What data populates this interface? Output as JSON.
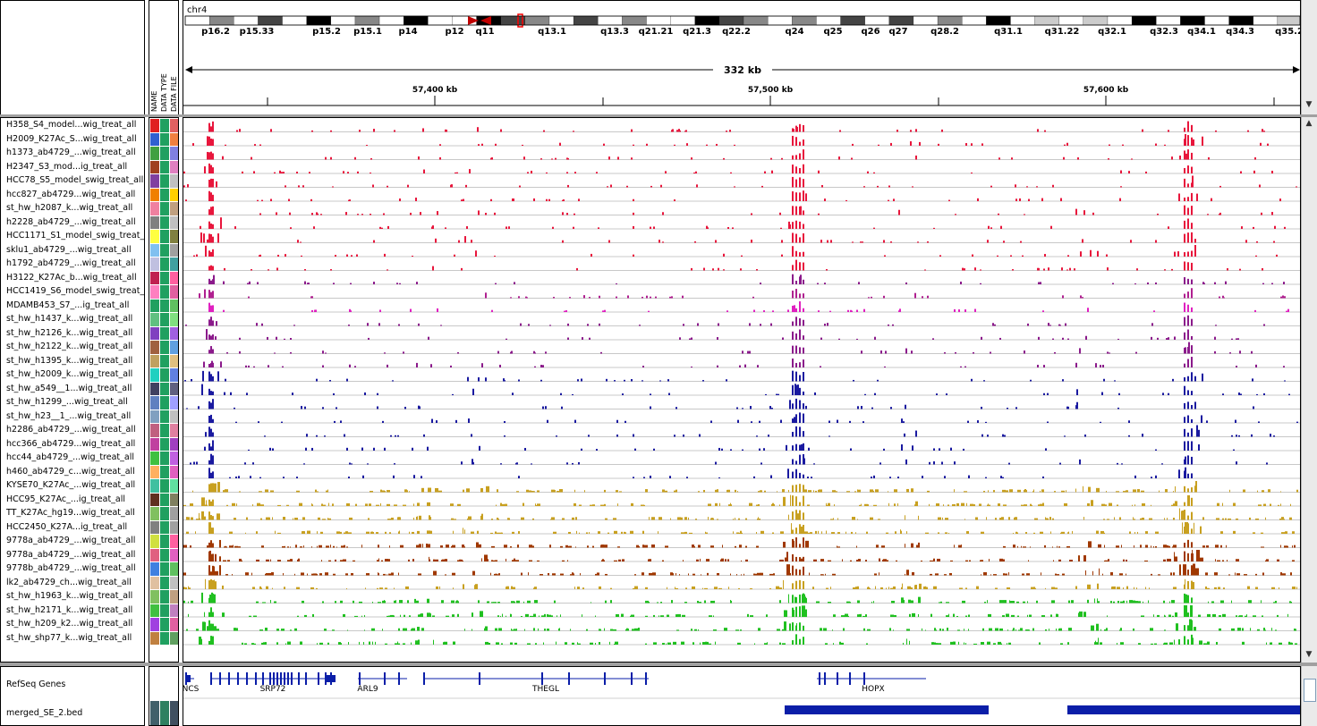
{
  "header": {
    "chromosome": "chr4",
    "span_label": "332 kb",
    "bands": [
      "p16.2",
      "p15.33",
      "p15.2",
      "p15.1",
      "p14",
      "p12",
      "q11",
      "q13.1",
      "q13.3",
      "q21.21",
      "q21.3",
      "q22.2",
      "q24",
      "q25",
      "q26",
      "q27",
      "q28.2",
      "q31.1",
      "q31.22",
      "q32.1",
      "q32.3",
      "q34.1",
      "q34.3",
      "q35.2"
    ],
    "ticks": [
      "57,400 kb",
      "57,500 kb",
      "57,600 kb"
    ]
  },
  "attribute_columns": [
    "NAME",
    "DATA TYPE",
    "DATA FILE"
  ],
  "tracks": [
    {
      "name": "H358_S4_model...wig_treat_all",
      "color": "#e8163c"
    },
    {
      "name": "H2009_K27Ac_S...wig_treat_all",
      "color": "#e8163c"
    },
    {
      "name": "h1373_ab4729_...wig_treat_all",
      "color": "#e8163c"
    },
    {
      "name": "H2347_S3_mod...ig_treat_all",
      "color": "#e8163c"
    },
    {
      "name": "HCC78_S5_model_swig_treat_all",
      "color": "#e8163c"
    },
    {
      "name": "hcc827_ab4729...wig_treat_all",
      "color": "#e8163c"
    },
    {
      "name": "st_hw_h2087_k...wig_treat_all",
      "color": "#e8163c"
    },
    {
      "name": "h2228_ab4729_...wig_treat_all",
      "color": "#e8163c"
    },
    {
      "name": "HCC1171_S1_model_swig_treat_",
      "color": "#e8163c"
    },
    {
      "name": "sklu1_ab4729_...wig_treat_all",
      "color": "#e8163c"
    },
    {
      "name": "h1792_ab4729_...wig_treat_all",
      "color": "#e8163c"
    },
    {
      "name": "H3122_K27Ac_b...wig_treat_all",
      "color": "#8b1a8b"
    },
    {
      "name": "HCC1419_S6_model_swig_treat_",
      "color": "#b02090"
    },
    {
      "name": "MDAMB453_S7_...ig_treat_all",
      "color": "#e020c0"
    },
    {
      "name": "st_hw_h1437_k...wig_treat_all",
      "color": "#8b1a8b"
    },
    {
      "name": "st_hw_h2126_k...wig_treat_all",
      "color": "#8b1a8b"
    },
    {
      "name": "st_hw_h2122_k...wig_treat_all",
      "color": "#8b1a8b"
    },
    {
      "name": "st_hw_h1395_k...wig_treat_all",
      "color": "#8b1a8b"
    },
    {
      "name": "st_hw_h2009_k...wig_treat_all",
      "color": "#1a1aa0"
    },
    {
      "name": "st_hw_a549__1...wig_treat_all",
      "color": "#1a1aa0"
    },
    {
      "name": "st_hw_h1299_...wig_treat_all",
      "color": "#1a1aa0"
    },
    {
      "name": "st_hw_h23__1_...wig_treat_all",
      "color": "#1a1aa0"
    },
    {
      "name": "h2286_ab4729_...wig_treat_all",
      "color": "#1a1aa0"
    },
    {
      "name": "hcc366_ab4729...wig_treat_all",
      "color": "#1a1aa0"
    },
    {
      "name": "hcc44_ab4729_...wig_treat_all",
      "color": "#1a1aa0"
    },
    {
      "name": "h460_ab4729_c...wig_treat_all",
      "color": "#1a1aa0"
    },
    {
      "name": "KYSE70_K27Ac_...wig_treat_all",
      "color": "#c8a020"
    },
    {
      "name": "HCC95_K27Ac_...ig_treat_all",
      "color": "#c8a020"
    },
    {
      "name": "TT_K27Ac_hg19...wig_treat_all",
      "color": "#c8a020"
    },
    {
      "name": "HCC2450_K27A...ig_treat_all",
      "color": "#c8a020"
    },
    {
      "name": "9778a_ab4729_...wig_treat_all",
      "color": "#a03800"
    },
    {
      "name": "9778a_ab4729_...wig_treat_all",
      "color": "#a03800"
    },
    {
      "name": "9778b_ab4729_...wig_treat_all",
      "color": "#a03800"
    },
    {
      "name": "lk2_ab4729_ch...wig_treat_all",
      "color": "#c8a020"
    },
    {
      "name": "st_hw_h1963_k...wig_treat_all",
      "color": "#20c020"
    },
    {
      "name": "st_hw_h2171_k...wig_treat_all",
      "color": "#20c020"
    },
    {
      "name": "st_hw_h209_k2...wig_treat_all",
      "color": "#20c020"
    },
    {
      "name": "st_hw_shp77_k...wig_treat_all",
      "color": "#20c020"
    }
  ],
  "attr_colors": [
    [
      "#e02020",
      "#20a060",
      "#e06060"
    ],
    [
      "#3060d0",
      "#20a060",
      "#f08040"
    ],
    [
      "#40a040",
      "#20a060",
      "#8080e0"
    ],
    [
      "#a04020",
      "#20a060",
      "#e080c0"
    ],
    [
      "#8040a0",
      "#20a060",
      "#c0c0c0"
    ],
    [
      "#f08000",
      "#20a060",
      "#ffd000"
    ],
    [
      "#f080a0",
      "#20a060",
      "#c0a080"
    ],
    [
      "#808080",
      "#20a060",
      "#c0c0c0"
    ],
    [
      "#ffff40",
      "#20a060",
      "#808040"
    ],
    [
      "#80c0f0",
      "#20a060",
      "#a0a0a0"
    ],
    [
      "#c0c0e0",
      "#20a060",
      "#40a0a0"
    ],
    [
      "#c02050",
      "#20a060",
      "#ff60a0"
    ],
    [
      "#ff80c0",
      "#20a060",
      "#e060a0"
    ],
    [
      "#20a060",
      "#20a060",
      "#60c060"
    ],
    [
      "#60c080",
      "#20a060",
      "#80e080"
    ],
    [
      "#8040c0",
      "#20a060",
      "#a060e0"
    ],
    [
      "#a06040",
      "#20a060",
      "#60a0e0"
    ],
    [
      "#c0a060",
      "#20a060",
      "#e0c080"
    ],
    [
      "#20d0c0",
      "#20a060",
      "#6080e0"
    ],
    [
      "#404060",
      "#20a060",
      "#606080"
    ],
    [
      "#6080c0",
      "#20a060",
      "#a0a0ff"
    ],
    [
      "#80a0c0",
      "#20a060",
      "#c0c0c0"
    ],
    [
      "#c06080",
      "#20a060",
      "#e080a0"
    ],
    [
      "#c040a0",
      "#20a060",
      "#a040c0"
    ],
    [
      "#40c040",
      "#20a060",
      "#c060e0"
    ],
    [
      "#ffb060",
      "#20a060",
      "#e060c0"
    ],
    [
      "#40c0a0",
      "#20a060",
      "#60e0a0"
    ],
    [
      "#603020",
      "#20a060",
      "#808060"
    ],
    [
      "#80c060",
      "#20a060",
      "#a0a0a0"
    ],
    [
      "#808080",
      "#20a060",
      "#a0a0a0"
    ],
    [
      "#d0e040",
      "#20a060",
      "#ff60a0"
    ],
    [
      "#e06080",
      "#20a060",
      "#e060c0"
    ],
    [
      "#4080e0",
      "#20a060",
      "#60c060"
    ],
    [
      "#e0c0a0",
      "#20a060",
      "#c0c0c0"
    ],
    [
      "#80c060",
      "#20a060",
      "#c0a080"
    ],
    [
      "#40c040",
      "#20a060",
      "#c080c0"
    ],
    [
      "#a040e0",
      "#20a060",
      "#e060a0"
    ],
    [
      "#c08040",
      "#20a060",
      "#60a060"
    ]
  ],
  "genes_track": {
    "name": "RefSeq Genes",
    "genes": [
      "NCS",
      "SRP72",
      "ARL9",
      "THEGL",
      "HOPX"
    ]
  },
  "bed_track": {
    "name": "merged_SE_2.bed",
    "color": "#0a1ea8"
  }
}
